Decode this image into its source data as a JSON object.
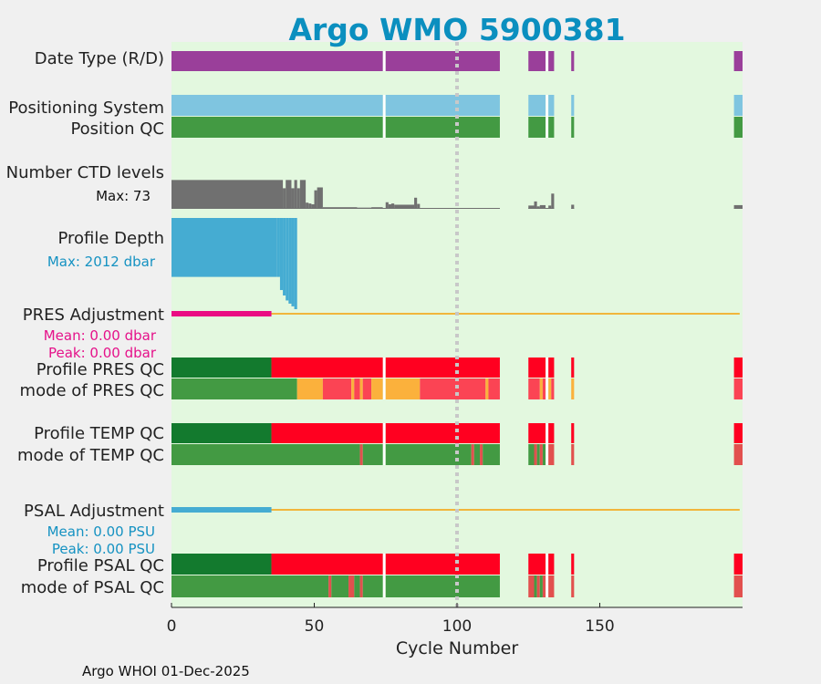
{
  "chart_data": {
    "type": "bar",
    "title": "Argo WMO 5900381",
    "xlabel": "Cycle Number",
    "xlim": [
      0,
      200
    ],
    "xticks": [
      0,
      50,
      100,
      150
    ],
    "footer": "Argo WHOI 01-Dec-2025",
    "marker_cycle": 100,
    "available_segments": [
      [
        0,
        115
      ],
      [
        125,
        134
      ],
      [
        140,
        141
      ],
      [
        197,
        200
      ]
    ],
    "rows": [
      {
        "key": "date_type",
        "label": "Date Type (R/D)",
        "segments": [
          {
            "from": 0,
            "to": 74,
            "color": "#9a3f9a"
          },
          {
            "from": 75,
            "to": 115,
            "color": "#9a3f9a"
          },
          {
            "from": 125,
            "to": 131,
            "color": "#9a3f9a"
          },
          {
            "from": 132,
            "to": 134,
            "color": "#9a3f9a"
          },
          {
            "from": 140,
            "to": 141,
            "color": "#9a3f9a"
          },
          {
            "from": 197,
            "to": 200,
            "color": "#9a3f9a"
          }
        ]
      },
      {
        "key": "positioning_system",
        "label": "Positioning System",
        "segments": [
          {
            "from": 0,
            "to": 74,
            "color": "#7fc5e0"
          },
          {
            "from": 75,
            "to": 115,
            "color": "#7fc5e0"
          },
          {
            "from": 125,
            "to": 131,
            "color": "#7fc5e0"
          },
          {
            "from": 132,
            "to": 134,
            "color": "#7fc5e0"
          },
          {
            "from": 140,
            "to": 141,
            "color": "#7fc5e0"
          },
          {
            "from": 197,
            "to": 200,
            "color": "#7fc5e0"
          }
        ]
      },
      {
        "key": "position_qc",
        "label": "Position QC",
        "segments": [
          {
            "from": 0,
            "to": 74,
            "color": "#439a43"
          },
          {
            "from": 75,
            "to": 115,
            "color": "#439a43"
          },
          {
            "from": 125,
            "to": 131,
            "color": "#439a43"
          },
          {
            "from": 132,
            "to": 134,
            "color": "#439a43"
          },
          {
            "from": 140,
            "to": 141,
            "color": "#439a43"
          },
          {
            "from": 197,
            "to": 200,
            "color": "#439a43"
          }
        ]
      },
      {
        "key": "pres_qc",
        "label": "Profile PRES QC",
        "segments": [
          {
            "from": 0,
            "to": 35,
            "color": "#137a2e"
          },
          {
            "from": 35,
            "to": 74,
            "color": "#ff0020"
          },
          {
            "from": 75,
            "to": 115,
            "color": "#ff0020"
          },
          {
            "from": 125,
            "to": 131,
            "color": "#ff0020"
          },
          {
            "from": 132,
            "to": 134,
            "color": "#ff0020"
          },
          {
            "from": 140,
            "to": 141,
            "color": "#ff0020"
          },
          {
            "from": 197,
            "to": 200,
            "color": "#ff0020"
          }
        ]
      },
      {
        "key": "pres_mode",
        "label": "mode of PRES QC",
        "segments": [
          {
            "from": 0,
            "to": 44,
            "color": "#439a43"
          },
          {
            "from": 44,
            "to": 53,
            "color": "#fbb13c"
          },
          {
            "from": 53,
            "to": 63,
            "color": "#fb4454"
          },
          {
            "from": 63,
            "to": 64,
            "color": "#fbb13c"
          },
          {
            "from": 64,
            "to": 66,
            "color": "#fb4454"
          },
          {
            "from": 66,
            "to": 67,
            "color": "#fbb13c"
          },
          {
            "from": 67,
            "to": 70,
            "color": "#fb4454"
          },
          {
            "from": 70,
            "to": 74,
            "color": "#fbb13c"
          },
          {
            "from": 75,
            "to": 87,
            "color": "#fbb13c"
          },
          {
            "from": 87,
            "to": 110,
            "color": "#fb4454"
          },
          {
            "from": 110,
            "to": 111,
            "color": "#fbb13c"
          },
          {
            "from": 111,
            "to": 115,
            "color": "#fb4454"
          },
          {
            "from": 125,
            "to": 129,
            "color": "#fb4454"
          },
          {
            "from": 129,
            "to": 130,
            "color": "#fbb13c"
          },
          {
            "from": 130,
            "to": 131,
            "color": "#fb4454"
          },
          {
            "from": 132,
            "to": 133,
            "color": "#fbb13c"
          },
          {
            "from": 133,
            "to": 134,
            "color": "#fb4454"
          },
          {
            "from": 140,
            "to": 141,
            "color": "#fbb13c"
          },
          {
            "from": 197,
            "to": 200,
            "color": "#fb4454"
          }
        ]
      },
      {
        "key": "temp_qc",
        "label": "Profile TEMP QC",
        "segments": [
          {
            "from": 0,
            "to": 35,
            "color": "#137a2e"
          },
          {
            "from": 35,
            "to": 74,
            "color": "#ff0020"
          },
          {
            "from": 75,
            "to": 115,
            "color": "#ff0020"
          },
          {
            "from": 125,
            "to": 131,
            "color": "#ff0020"
          },
          {
            "from": 132,
            "to": 134,
            "color": "#ff0020"
          },
          {
            "from": 140,
            "to": 141,
            "color": "#ff0020"
          },
          {
            "from": 197,
            "to": 200,
            "color": "#ff0020"
          }
        ]
      },
      {
        "key": "temp_mode",
        "label": "mode of TEMP QC",
        "segments": [
          {
            "from": 0,
            "to": 66,
            "color": "#439a43"
          },
          {
            "from": 66,
            "to": 67,
            "color": "#e2504e"
          },
          {
            "from": 67,
            "to": 74,
            "color": "#439a43"
          },
          {
            "from": 75,
            "to": 105,
            "color": "#439a43"
          },
          {
            "from": 105,
            "to": 106,
            "color": "#e2504e"
          },
          {
            "from": 106,
            "to": 108,
            "color": "#439a43"
          },
          {
            "from": 108,
            "to": 109,
            "color": "#e2504e"
          },
          {
            "from": 109,
            "to": 115,
            "color": "#439a43"
          },
          {
            "from": 125,
            "to": 127,
            "color": "#439a43"
          },
          {
            "from": 127,
            "to": 128,
            "color": "#e2504e"
          },
          {
            "from": 128,
            "to": 129,
            "color": "#439a43"
          },
          {
            "from": 129,
            "to": 130,
            "color": "#e2504e"
          },
          {
            "from": 130,
            "to": 131,
            "color": "#439a43"
          },
          {
            "from": 132,
            "to": 134,
            "color": "#e2504e"
          },
          {
            "from": 140,
            "to": 141,
            "color": "#e2504e"
          },
          {
            "from": 197,
            "to": 200,
            "color": "#e2504e"
          }
        ]
      },
      {
        "key": "psal_qc",
        "label": "Profile PSAL QC",
        "segments": [
          {
            "from": 0,
            "to": 35,
            "color": "#137a2e"
          },
          {
            "from": 35,
            "to": 74,
            "color": "#ff0020"
          },
          {
            "from": 75,
            "to": 115,
            "color": "#ff0020"
          },
          {
            "from": 125,
            "to": 131,
            "color": "#ff0020"
          },
          {
            "from": 132,
            "to": 134,
            "color": "#ff0020"
          },
          {
            "from": 140,
            "to": 141,
            "color": "#ff0020"
          },
          {
            "from": 197,
            "to": 200,
            "color": "#ff0020"
          }
        ]
      },
      {
        "key": "psal_mode",
        "label": "mode of PSAL QC",
        "segments": [
          {
            "from": 0,
            "to": 55,
            "color": "#439a43"
          },
          {
            "from": 55,
            "to": 56,
            "color": "#e2504e"
          },
          {
            "from": 56,
            "to": 62,
            "color": "#439a43"
          },
          {
            "from": 62,
            "to": 64,
            "color": "#e2504e"
          },
          {
            "from": 64,
            "to": 66,
            "color": "#439a43"
          },
          {
            "from": 66,
            "to": 67,
            "color": "#e2504e"
          },
          {
            "from": 67,
            "to": 74,
            "color": "#439a43"
          },
          {
            "from": 75,
            "to": 115,
            "color": "#439a43"
          },
          {
            "from": 125,
            "to": 127,
            "color": "#e2504e"
          },
          {
            "from": 127,
            "to": 128,
            "color": "#439a43"
          },
          {
            "from": 128,
            "to": 129,
            "color": "#e2504e"
          },
          {
            "from": 129,
            "to": 130,
            "color": "#439a43"
          },
          {
            "from": 130,
            "to": 131,
            "color": "#e2504e"
          },
          {
            "from": 132,
            "to": 134,
            "color": "#e2504e"
          },
          {
            "from": 140,
            "to": 141,
            "color": "#e2504e"
          },
          {
            "from": 197,
            "to": 200,
            "color": "#e2504e"
          }
        ]
      }
    ],
    "ctd_levels": {
      "label": "Number CTD levels",
      "max_label": "Max: 73",
      "max": 73,
      "color": "#707070",
      "cycles": [
        {
          "from": 0,
          "to": 39,
          "value": 70
        },
        {
          "from": 39,
          "to": 40,
          "value": 50
        },
        {
          "from": 40,
          "to": 42,
          "value": 70
        },
        {
          "from": 42,
          "to": 43,
          "value": 50
        },
        {
          "from": 43,
          "to": 44,
          "value": 70
        },
        {
          "from": 44,
          "to": 45,
          "value": 50
        },
        {
          "from": 45,
          "to": 47,
          "value": 70
        },
        {
          "from": 47,
          "to": 48,
          "value": 15
        },
        {
          "from": 48,
          "to": 49,
          "value": 13
        },
        {
          "from": 49,
          "to": 50,
          "value": 11
        },
        {
          "from": 50,
          "to": 51,
          "value": 45
        },
        {
          "from": 51,
          "to": 53,
          "value": 52
        },
        {
          "from": 53,
          "to": 65,
          "value": 4
        },
        {
          "from": 65,
          "to": 70,
          "value": 3
        },
        {
          "from": 70,
          "to": 74,
          "value": 4
        },
        {
          "from": 75,
          "to": 76,
          "value": 16
        },
        {
          "from": 76,
          "to": 77,
          "value": 11
        },
        {
          "from": 77,
          "to": 78,
          "value": 13
        },
        {
          "from": 78,
          "to": 85,
          "value": 10
        },
        {
          "from": 85,
          "to": 86,
          "value": 27
        },
        {
          "from": 86,
          "to": 87,
          "value": 12
        },
        {
          "from": 87,
          "to": 115,
          "value": 2
        },
        {
          "from": 125,
          "to": 127,
          "value": 8
        },
        {
          "from": 127,
          "to": 128,
          "value": 18
        },
        {
          "from": 128,
          "to": 129,
          "value": 6
        },
        {
          "from": 129,
          "to": 131,
          "value": 9
        },
        {
          "from": 132,
          "to": 133,
          "value": 8
        },
        {
          "from": 133,
          "to": 134,
          "value": 37
        },
        {
          "from": 140,
          "to": 141,
          "value": 10
        },
        {
          "from": 197,
          "to": 200,
          "value": 9
        }
      ]
    },
    "profile_depth": {
      "label": "Profile Depth",
      "max_label": "Max: 2012 dbar",
      "max": 2012,
      "color": "#45acd2",
      "cycles": [
        {
          "from": 0,
          "to": 37,
          "value": 1300
        },
        {
          "from": 37,
          "to": 38,
          "value": 1300
        },
        {
          "from": 38,
          "to": 39,
          "value": 1590
        },
        {
          "from": 39,
          "to": 40,
          "value": 1710
        },
        {
          "from": 40,
          "to": 41,
          "value": 1820
        },
        {
          "from": 41,
          "to": 42,
          "value": 1890
        },
        {
          "from": 42,
          "to": 43,
          "value": 1950
        },
        {
          "from": 43,
          "to": 44,
          "value": 2012
        }
      ]
    },
    "pres_adjustment": {
      "label": "PRES Adjustment",
      "mean_label": "Mean: 0.00 dbar",
      "peak_label": "Peak: 0.00 dbar",
      "adjusted_until": 35,
      "line_until": 199,
      "adjusted_color": "#ea0c83",
      "line_color": "#f1b63c"
    },
    "psal_adjustment": {
      "label": "PSAL Adjustment",
      "mean_label": "Mean: 0.00 PSU",
      "peak_label": "Peak: 0.00 PSU",
      "adjusted_until": 35,
      "line_until": 199,
      "adjusted_color": "#45acd2",
      "line_color": "#f1b63c"
    },
    "colors": {
      "title": "#0b8fbf",
      "plot_background": "#e3f8df",
      "page_background": "#f0f0f0",
      "marker": "#c8c8c8",
      "text": "#222222",
      "pres_stats": "#e5128a",
      "psal_stats": "#1592c2"
    }
  }
}
